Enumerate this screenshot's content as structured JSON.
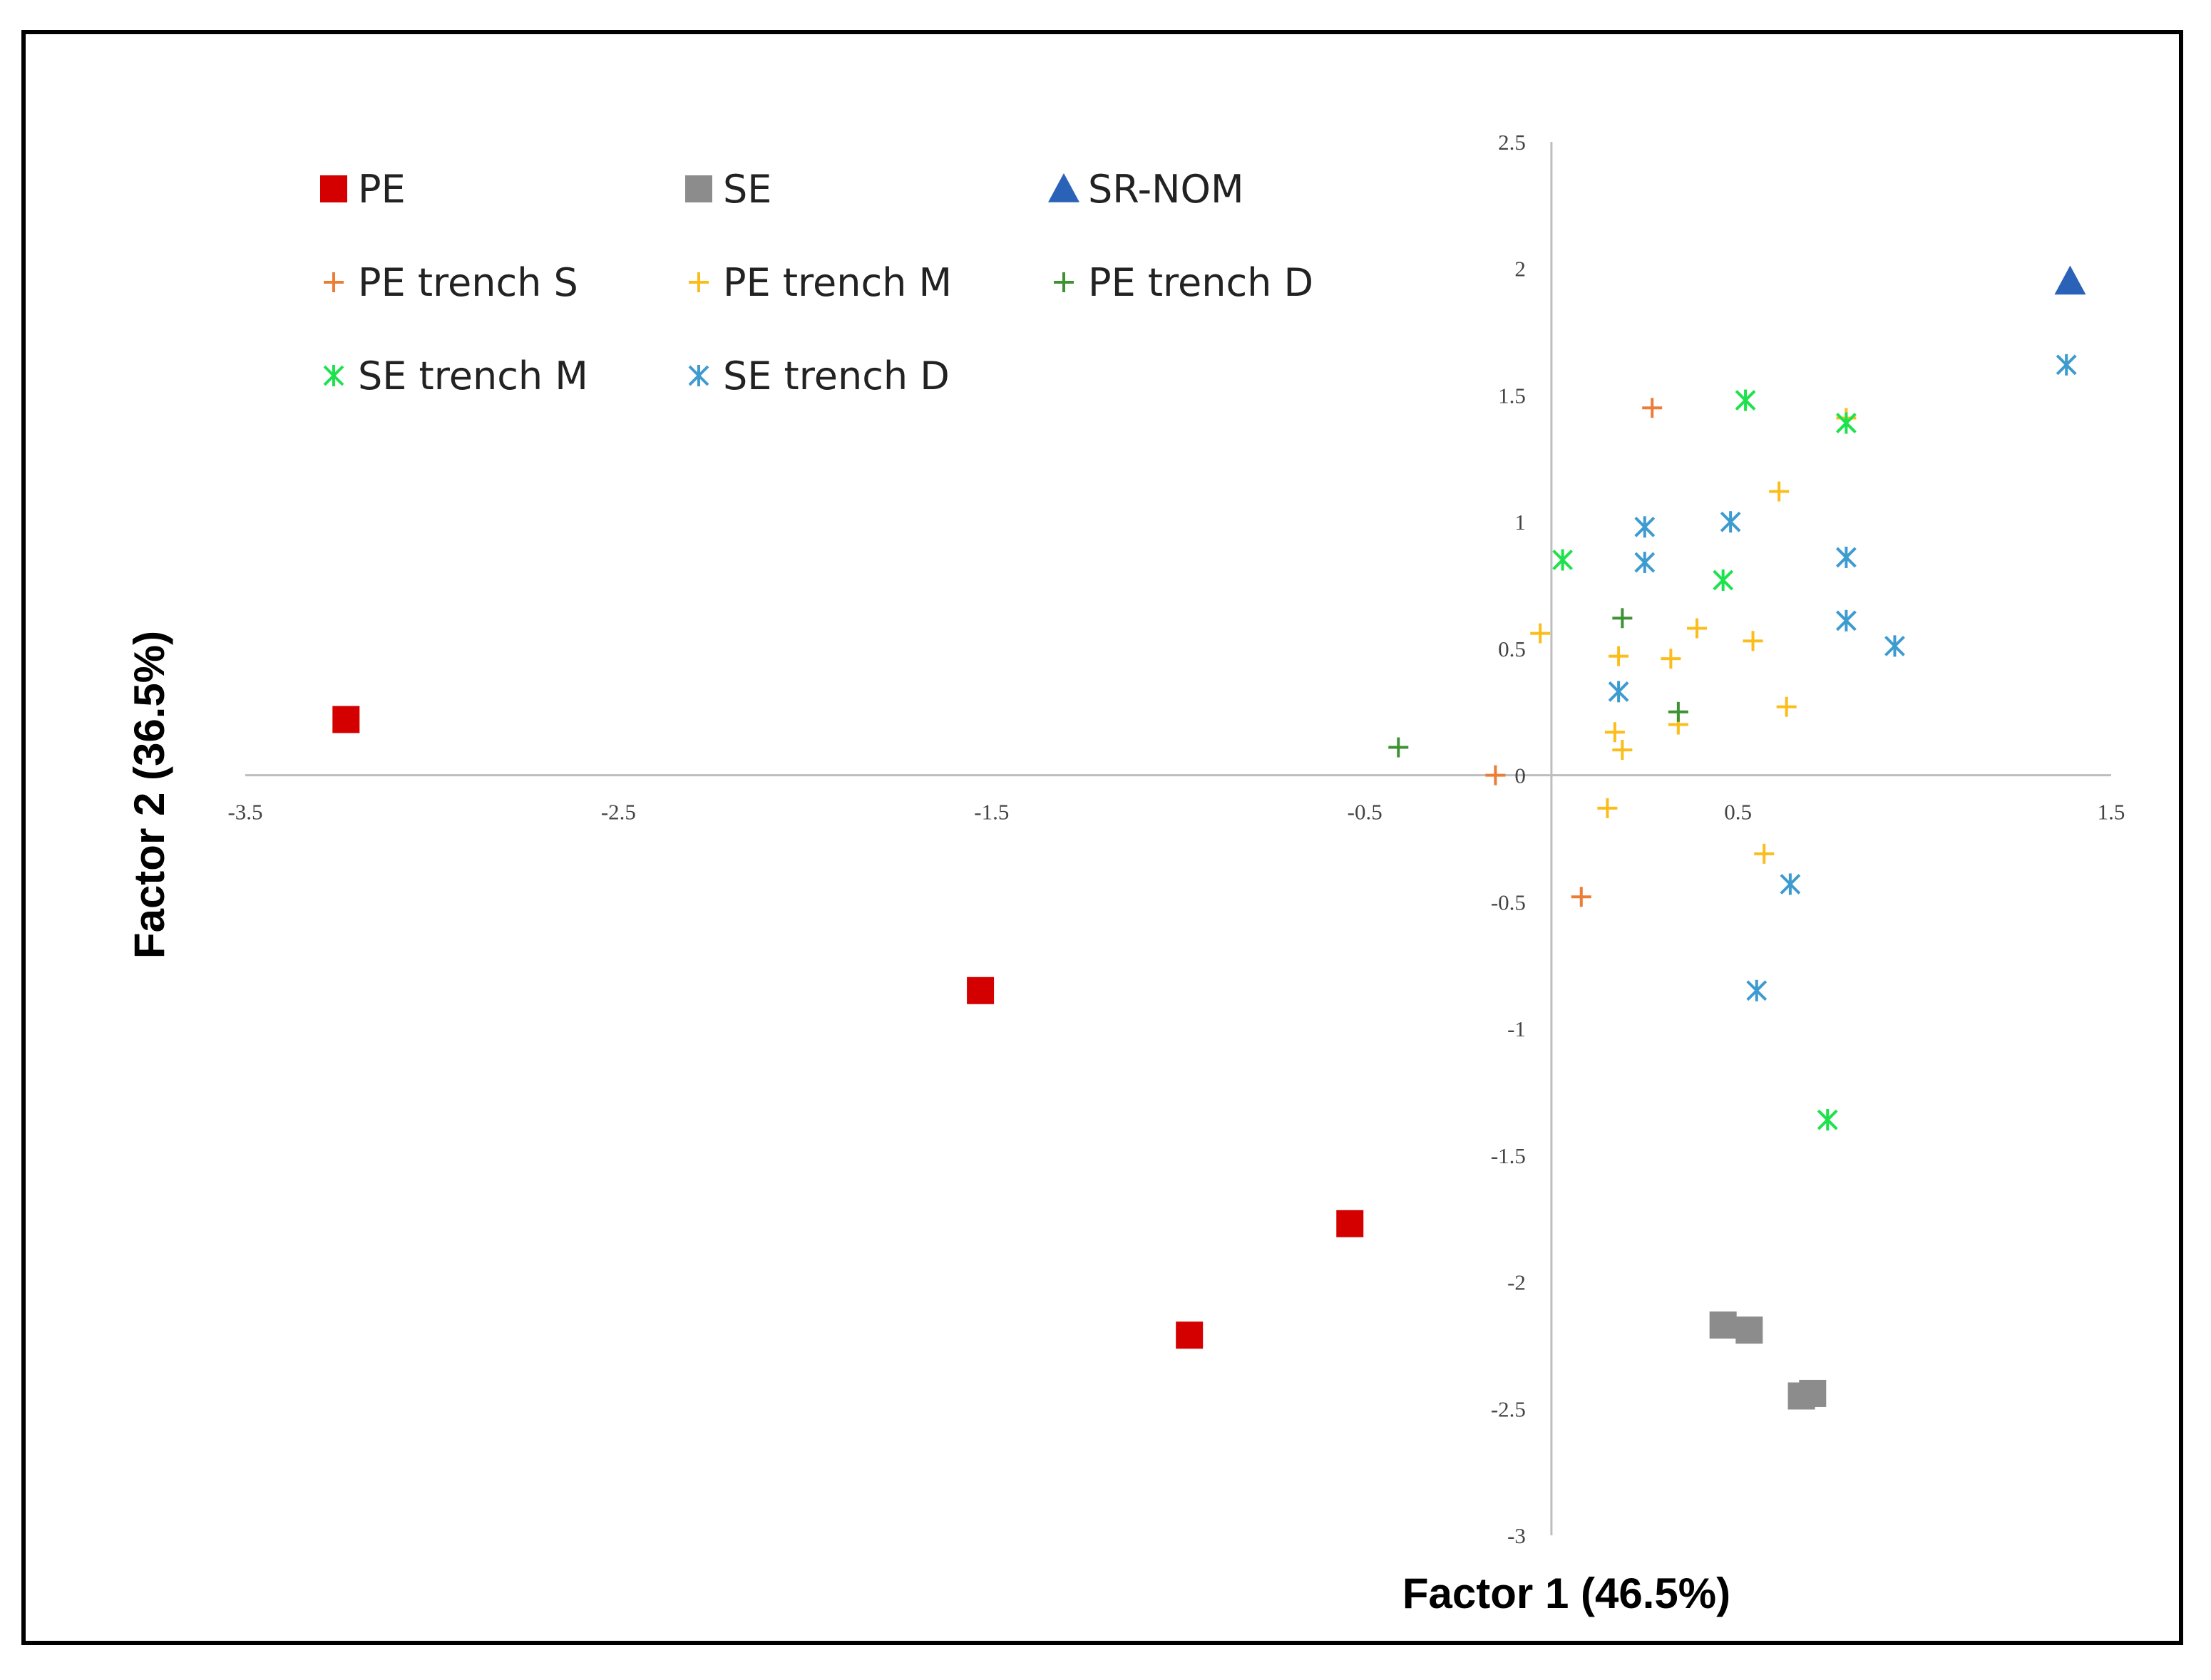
{
  "chart_data": {
    "type": "scatter",
    "title": "",
    "xlabel": "Factor 1  (46.5%)",
    "ylabel": "Factor 2  (36.5%)",
    "xlim": [
      -3.5,
      1.5
    ],
    "ylim": [
      -3,
      2.5
    ],
    "x_ticks": [
      "-3.5",
      "-2.5",
      "-1.5",
      "-0.5",
      "0.5",
      "1.5"
    ],
    "y_ticks": [
      "2.5",
      "2",
      "1.5",
      "1",
      "0.5",
      "0",
      "-0.5",
      "-1",
      "-1.5",
      "-2",
      "-2.5",
      "-3"
    ],
    "grid": false,
    "legend_position": "top-left",
    "series": [
      {
        "name": "PE",
        "marker": "square",
        "color": "#d40000",
        "points": [
          [
            -3.23,
            0.22
          ],
          [
            -1.53,
            -0.85
          ],
          [
            -0.54,
            -1.77
          ],
          [
            -0.97,
            -2.21
          ]
        ]
      },
      {
        "name": "SE",
        "marker": "square",
        "color": "#8c8c8c",
        "points": [
          [
            0.46,
            -2.17
          ],
          [
            0.53,
            -2.19
          ],
          [
            0.67,
            -2.45
          ],
          [
            0.7,
            -2.44
          ]
        ]
      },
      {
        "name": "SR-NOM",
        "marker": "triangle",
        "color": "#2a62b7",
        "points": [
          [
            1.39,
            1.95
          ]
        ]
      },
      {
        "name": "PE trench S",
        "marker": "plus",
        "color": "#ec7d35",
        "points": [
          [
            0.27,
            1.45
          ],
          [
            -0.15,
            0.0
          ],
          [
            0.08,
            -0.48
          ]
        ]
      },
      {
        "name": "PE trench M",
        "marker": "plus",
        "color": "#fbbd1b",
        "points": [
          [
            0.79,
            1.41
          ],
          [
            0.61,
            1.12
          ],
          [
            -0.03,
            0.56
          ],
          [
            0.39,
            0.58
          ],
          [
            0.18,
            0.47
          ],
          [
            0.32,
            0.46
          ],
          [
            0.54,
            0.53
          ],
          [
            0.63,
            0.27
          ],
          [
            0.34,
            0.2
          ],
          [
            0.17,
            0.17
          ],
          [
            0.19,
            0.1
          ],
          [
            0.15,
            -0.13
          ],
          [
            0.57,
            -0.31
          ]
        ]
      },
      {
        "name": "PE trench D",
        "marker": "plus",
        "color": "#3f9233",
        "points": [
          [
            -0.41,
            0.11
          ],
          [
            0.19,
            0.62
          ],
          [
            0.34,
            0.25
          ]
        ]
      },
      {
        "name": "SE trench M",
        "marker": "asterisk",
        "color": "#1de24c",
        "points": [
          [
            0.52,
            1.48
          ],
          [
            0.79,
            1.39
          ],
          [
            0.03,
            0.85
          ],
          [
            0.46,
            0.77
          ],
          [
            0.74,
            -1.36
          ]
        ]
      },
      {
        "name": "SE trench D",
        "marker": "asterisk",
        "color": "#3e9bd0",
        "points": [
          [
            1.38,
            1.62
          ],
          [
            0.25,
            0.98
          ],
          [
            0.48,
            1.0
          ],
          [
            0.25,
            0.84
          ],
          [
            0.79,
            0.86
          ],
          [
            0.79,
            0.61
          ],
          [
            0.92,
            0.51
          ],
          [
            0.18,
            0.33
          ],
          [
            0.64,
            -0.43
          ],
          [
            0.55,
            -0.85
          ]
        ]
      }
    ]
  }
}
